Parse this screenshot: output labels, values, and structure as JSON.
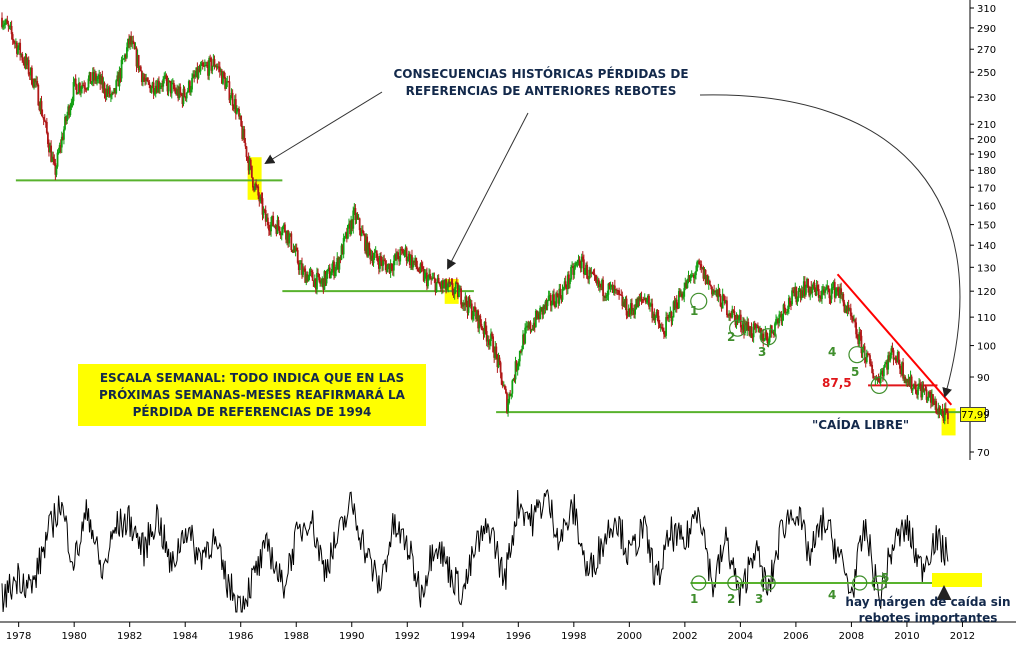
{
  "chart_data": [
    {
      "type": "candlestick",
      "panel": "price",
      "yscale": "log",
      "ylim": [
        70,
        310
      ],
      "y_ticks": [
        70,
        80,
        90,
        100,
        110,
        120,
        130,
        140,
        150,
        160,
        170,
        180,
        190,
        200,
        210,
        230,
        250,
        270,
        290,
        310
      ],
      "x_ticks": [
        "1978",
        "1980",
        "1982",
        "1984",
        "1986",
        "1988",
        "1990",
        "1992",
        "1994",
        "1996",
        "1998",
        "2000",
        "2002",
        "2004",
        "2006",
        "2008",
        "2010",
        "2012"
      ],
      "xlim": [
        1977.4,
        2012.2
      ],
      "last_value": "77,99",
      "series": [
        {
          "x": [
            1977.4,
            1978.0,
            1978.6,
            1979.3,
            1980.0,
            1980.8,
            1981.4,
            1982.0,
            1982.6,
            1983.2,
            1983.9,
            1984.5,
            1985.1,
            1985.8,
            1986.4,
            1986.9,
            1987.6,
            1988.2,
            1988.9,
            1989.5,
            1990.1,
            1990.6,
            1991.3,
            1991.9,
            1992.6,
            1993.2,
            1993.8,
            1994.5,
            1995.1,
            1995.6,
            1996.2,
            1996.9,
            1997.6,
            1998.2,
            1998.8,
            1999.4,
            2000.0,
            2000.6,
            2001.2,
            2001.8,
            2002.5,
            2003.1,
            2003.8,
            2004.4,
            2005.0,
            2005.6,
            2006.3,
            2006.9,
            2007.5,
            2007.9,
            2008.4,
            2008.9,
            2009.5,
            2010.1,
            2010.6,
            2011.1,
            2011.5
          ],
          "y": [
            300,
            270,
            240,
            178,
            238,
            245,
            228,
            278,
            238,
            242,
            230,
            250,
            258,
            224,
            176,
            152,
            148,
            128,
            123,
            132,
            155,
            137,
            130,
            137,
            126,
            122,
            120,
            110,
            100,
            82,
            103,
            113,
            120,
            133,
            122,
            120,
            112,
            118,
            104,
            118,
            130,
            119,
            110,
            105,
            103,
            114,
            122,
            119,
            121,
            111,
            99,
            89,
            98,
            88,
            86,
            81,
            78
          ]
        }
      ],
      "support_lines": [
        {
          "level": 174,
          "from": 1977.9,
          "to": 1987.5,
          "color": "#58b22d"
        },
        {
          "level": 120,
          "from": 1987.5,
          "to": 1994.4,
          "color": "#58b22d"
        },
        {
          "level": 80,
          "from": 1995.2,
          "to": 2012.0,
          "color": "#58b22d"
        },
        {
          "level": 87.5,
          "from": 2008.6,
          "to": 2011.1,
          "color": "#e0161a"
        }
      ],
      "trendline": {
        "from": [
          2007.5,
          127
        ],
        "to": [
          2011.6,
          82
        ],
        "color": "#ff0000"
      },
      "circled_points": [
        {
          "label": "1",
          "x": 2002.5,
          "y": 116
        },
        {
          "label": "2",
          "x": 2003.9,
          "y": 106
        },
        {
          "label": "3",
          "x": 2005.0,
          "y": 103
        },
        {
          "label": "4",
          "x": 2008.2,
          "y": 97
        },
        {
          "label": "5",
          "x": 2009.0,
          "y": 87.5
        }
      ],
      "highlights": [
        {
          "x": 1986.5,
          "y": [
            163,
            188
          ]
        },
        {
          "x": 1993.6,
          "y": [
            115,
            125
          ]
        },
        {
          "x": 2011.5,
          "y": [
            74,
            81
          ]
        }
      ]
    },
    {
      "type": "line",
      "panel": "indicator",
      "xlim": [
        1977.4,
        2012.2
      ],
      "ylim": [
        0,
        1
      ],
      "series": [
        {
          "x": [
            1977.4,
            1978.0,
            1978.5,
            1979.0,
            1979.5,
            1980.0,
            1980.5,
            1981.0,
            1981.5,
            1982.0,
            1982.5,
            1983.0,
            1983.5,
            1984.0,
            1984.5,
            1985.0,
            1985.5,
            1986.0,
            1986.5,
            1987.0,
            1987.5,
            1988.0,
            1988.5,
            1989.0,
            1989.5,
            1990.0,
            1990.5,
            1991.0,
            1991.5,
            1992.0,
            1992.5,
            1993.0,
            1993.5,
            1994.0,
            1994.5,
            1995.0,
            1995.5,
            1996.0,
            1996.5,
            1997.0,
            1997.5,
            1998.0,
            1998.5,
            1999.0,
            1999.5,
            2000.0,
            2000.5,
            2001.0,
            2001.5,
            2002.0,
            2002.5,
            2003.0,
            2003.5,
            2004.0,
            2004.5,
            2005.0,
            2005.5,
            2006.0,
            2006.5,
            2007.0,
            2007.5,
            2008.0,
            2008.5,
            2009.0,
            2009.5,
            2010.0,
            2010.5,
            2011.0,
            2011.5
          ],
          "y": [
            0.1,
            0.3,
            0.2,
            0.6,
            0.9,
            0.4,
            0.85,
            0.3,
            0.7,
            0.75,
            0.5,
            0.8,
            0.35,
            0.7,
            0.45,
            0.6,
            0.25,
            0.05,
            0.3,
            0.55,
            0.2,
            0.6,
            0.8,
            0.35,
            0.6,
            0.9,
            0.5,
            0.2,
            0.7,
            0.55,
            0.15,
            0.6,
            0.35,
            0.15,
            0.55,
            0.7,
            0.25,
            0.9,
            0.75,
            0.95,
            0.6,
            0.85,
            0.3,
            0.55,
            0.8,
            0.45,
            0.7,
            0.25,
            0.65,
            0.55,
            0.9,
            0.2,
            0.6,
            0.1,
            0.55,
            0.15,
            0.7,
            0.85,
            0.45,
            0.75,
            0.5,
            0.15,
            0.7,
            0.1,
            0.55,
            0.7,
            0.35,
            0.6,
            0.45
          ]
        }
      ],
      "support_line": {
        "from": 2002.2,
        "to": 2012.0
      },
      "circled_points": [
        {
          "label": "1",
          "x": 2002.5
        },
        {
          "label": "2",
          "x": 2003.8
        },
        {
          "label": "3",
          "x": 2005.0
        },
        {
          "label": "4",
          "x": 2008.3
        },
        {
          "label": "5",
          "x": 2009.0
        }
      ]
    }
  ],
  "annotations": {
    "top_note": "CONSECUENCIAS HISTÓRICAS PÉRDIDAS DE REFERENCIAS DE ANTERIORES REBOTES",
    "weekly_scale": "ESCALA SEMANAL: TODO INDICA QUE EN LAS PRÓXIMAS SEMANAS-MESES REAFIRMARÁ LA PÉRDIDA DE REFERENCIAS DE 1994",
    "free_fall": "\"CAÍDA LIBRE\"",
    "margin_note": "hay márgen de caída sin rebotes importantes",
    "level_label": "87,5"
  },
  "colors": {
    "up_candle": "#12a012",
    "down_candle": "#b01818",
    "support": "#58b22d",
    "trend": "#ff0000",
    "highlight": "#ffff00",
    "text_dark": "#13294b",
    "label_green": "#3f8e2c"
  }
}
